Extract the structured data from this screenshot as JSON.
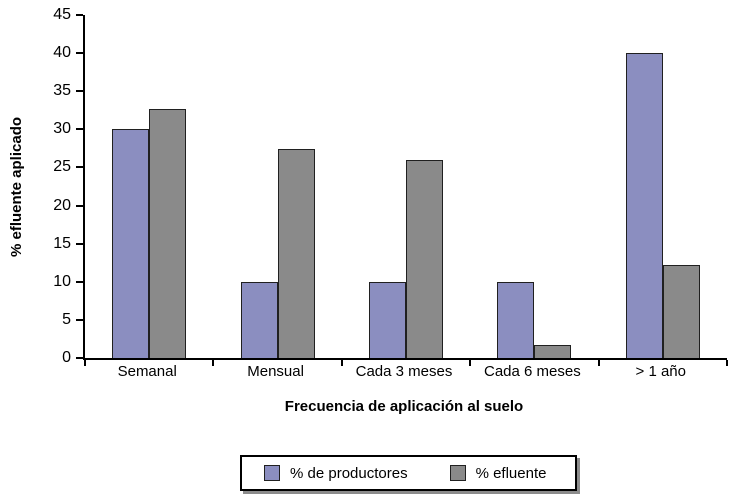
{
  "chart_data": {
    "type": "bar",
    "title": "",
    "categories": [
      "Semanal",
      "Mensual",
      "Cada 3 meses",
      "Cada 6 meses",
      "> 1 año"
    ],
    "series": [
      {
        "name": "% de productores",
        "color": "#8b8ec0",
        "values": [
          30,
          10,
          10,
          10,
          40
        ]
      },
      {
        "name": "% efluente",
        "color": "#8a8a8a",
        "values": [
          32.7,
          27.4,
          26,
          1.7,
          12.2
        ]
      }
    ],
    "xlabel": "Frecuencia de aplicación al suelo",
    "ylabel": "% efluente aplicado",
    "ylim": [
      0,
      45
    ],
    "yticks": [
      0,
      5,
      10,
      15,
      20,
      25,
      30,
      35,
      40,
      45
    ],
    "grid": "off",
    "legend_position": "bottom-center",
    "bar_border_color": "#202020",
    "axis_color": "#000000",
    "background_color": "#ffffff"
  }
}
